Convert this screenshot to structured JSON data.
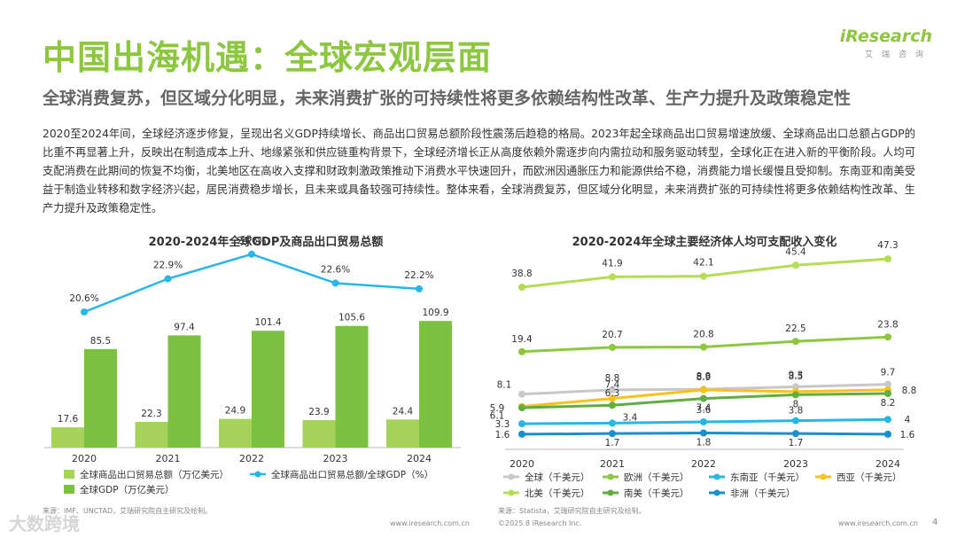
{
  "header": {
    "title": "中国出海机遇：全球宏观层面",
    "subtitle": "全球消费复苏，但区域分化明显，未来消费扩张的可持续性将更多依赖结构性改革、生产力提升及政策稳定性",
    "logo_text": "iResearch",
    "logo_sub": "艾瑞咨询"
  },
  "body_text": "2020至2024年间，全球经济逐步修复，呈现出名义GDP持续增长、商品出口贸易总额阶段性震荡后趋稳的格局。2023年起全球商品出口贸易增速放缓、全球商品出口总额占GDP的比重不再显著上升，反映出在制造成本上升、地缘紧张和供应链重构背景下，全球经济增长正从高度依赖外需逐步向内需拉动和服务驱动转型，全球化正在进入新的平衡阶段。人均可支配消费在此期间的恢复不均衡，北美地区在高收入支撑和财政刺激政策推动下消费水平快速回升，而欧洲因通胀压力和能源供给不稳，消费能力增长缓慢且受抑制。东南亚和南美受益于制造业转移和数字经济兴起，居民消费稳步增长，且未来或具备较强可持续性。整体来看，全球消费复苏，但区域分化明显，未来消费扩张的可持续性将更多依赖结构性改革、生产力提升及政策稳定性。",
  "colors": {
    "brand_green": "#8dc63f",
    "export_bar": "#a6d35a",
    "gdp_bar": "#7bc142",
    "ratio_line": "#26b6e8"
  },
  "chart_data": [
    {
      "type": "bar",
      "title": "2020-2024年全球GDP及商品出口贸易总额",
      "categories": [
        "2020",
        "2021",
        "2022",
        "2023",
        "2024"
      ],
      "series": [
        {
          "name": "全球商品出口贸易总额（万亿美元）",
          "values": [
            17.6,
            22.3,
            24.9,
            23.9,
            24.4
          ],
          "color": "#a6d35a"
        },
        {
          "name": "全球GDP（万亿美元）",
          "values": [
            85.5,
            97.4,
            101.4,
            105.6,
            109.9
          ],
          "color": "#7bc142"
        }
      ],
      "line_series": {
        "name": "全球商品出口贸易总额/全球GDP（%）",
        "values": [
          20.6,
          22.9,
          24.6,
          22.6,
          22.2
        ],
        "labels": [
          "20.6%",
          "22.9%",
          "24.6%",
          "22.6%",
          "22.2%"
        ],
        "color": "#26b6e8"
      },
      "source": "来源：IMF、UNCTAD，艾瑞研究院自主研究及绘制。"
    },
    {
      "type": "line",
      "title": "2020-2024年全球主要经济体人均可支配收入变化",
      "x": [
        "2020",
        "2021",
        "2022",
        "2023",
        "2024"
      ],
      "series": [
        {
          "name": "全球（千美元）",
          "values": [
            8.1,
            8.8,
            8.9,
            9.3,
            9.7
          ],
          "color": "#c8c8c8"
        },
        {
          "name": "欧洲（千美元）",
          "values": [
            19.4,
            20.7,
            20.8,
            22.5,
            23.8
          ],
          "color": "#8dc63f"
        },
        {
          "name": "东南亚（千美元）",
          "values": [
            3.3,
            3.4,
            3.6,
            3.8,
            4.0
          ],
          "color": "#26b6e8"
        },
        {
          "name": "西亚（千美元）",
          "values": [
            6.1,
            7.4,
            8.8,
            8.5,
            8.8
          ],
          "color": "#f7c21a"
        },
        {
          "name": "北美（千美元）",
          "values": [
            38.8,
            41.9,
            42.1,
            45.4,
            47.3
          ],
          "color": "#b5dc55"
        },
        {
          "name": "南美（千美元）",
          "values": [
            5.9,
            6.3,
            7.4,
            8.0,
            8.2
          ],
          "color": "#5fae3f"
        },
        {
          "name": "非洲（千美元）",
          "values": [
            1.6,
            1.7,
            1.8,
            1.7,
            1.6
          ],
          "color": "#1a8fd0"
        }
      ],
      "source": "来源：Statista，艾瑞研究院自主研究及绘制。"
    }
  ],
  "footer": {
    "url_left": "www.iresearch.com.cn",
    "copyright": "©2025.8 iResearch Inc.",
    "url_right": "www.iresearch.com.cn",
    "page_number": "4"
  },
  "watermark": "大数跨境"
}
